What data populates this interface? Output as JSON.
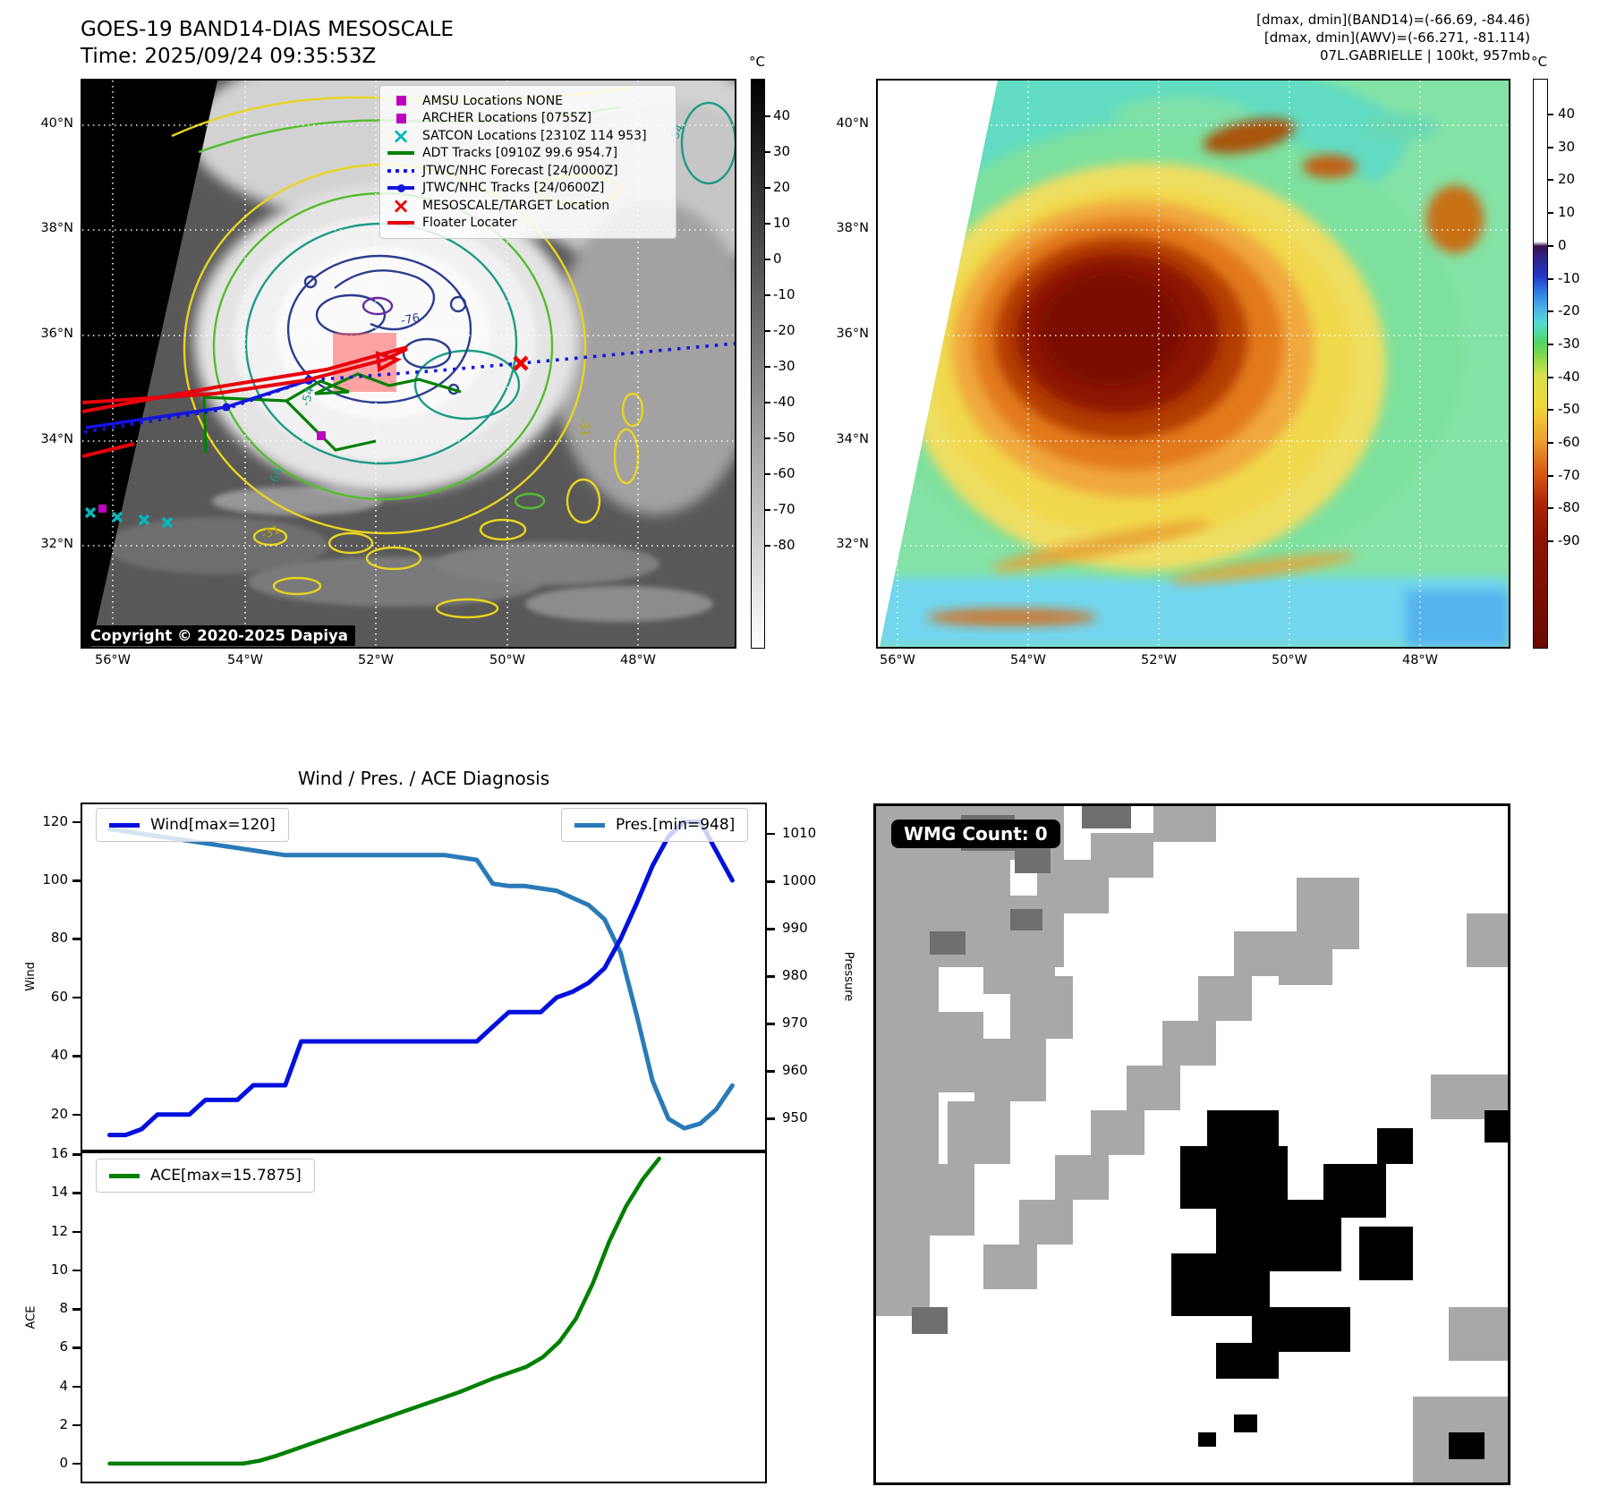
{
  "header": {
    "title": "GOES-19 BAND14-DIAS MESOSCALE",
    "time": "Time: 2025/09/24 09:35:53Z",
    "info_lines": [
      "[dmax, dmin](BAND14)=(-66.69, -84.46)",
      "[dmax, dmin](AWV)=(-66.271, -81.114)",
      "07L.GABRIELLE | 100kt, 957mb"
    ]
  },
  "ir_panel": {
    "legend_items": [
      {
        "marker": "square-magenta",
        "label": "AMSU Locations NONE"
      },
      {
        "marker": "square-magenta",
        "label": "ARCHER Locations [0755Z]"
      },
      {
        "marker": "x-cyan",
        "label": "SATCON Locations [2310Z 114 953]"
      },
      {
        "marker": "line-green",
        "label": "ADT Tracks [0910Z 99.6 954.7]"
      },
      {
        "marker": "dotted-blue",
        "label": "JTWC/NHC Forecast [24/0000Z]"
      },
      {
        "marker": "line-dot-blue",
        "label": "JTWC/NHC Tracks [24/0600Z]"
      },
      {
        "marker": "x-red",
        "label": "MESOSCALE/TARGET Location"
      },
      {
        "marker": "line-red",
        "label": "Floater Locater"
      }
    ],
    "copyright": "Copyright © 2020-2025 Dapiya",
    "lat_ticks": [
      "40°N",
      "38°N",
      "36°N",
      "34°N",
      "32°N"
    ],
    "lon_ticks": [
      "56°W",
      "54°W",
      "52°W",
      "50°W",
      "48°W"
    ],
    "contour_labels": [
      "-76",
      "-54",
      "-64",
      "-31",
      "-31",
      "-54"
    ],
    "colorbar": {
      "unit": "°C",
      "ticks": [
        40,
        30,
        20,
        10,
        0,
        -10,
        -20,
        -30,
        -40,
        -50,
        -60,
        -70,
        -80
      ]
    }
  },
  "awv_panel": {
    "lat_ticks": [
      "40°N",
      "38°N",
      "36°N",
      "34°N",
      "32°N"
    ],
    "lon_ticks": [
      "56°W",
      "54°W",
      "52°W",
      "50°W",
      "48°W"
    ],
    "colorbar": {
      "unit": "°C",
      "ticks": [
        40,
        30,
        20,
        10,
        0,
        -10,
        -20,
        -30,
        -40,
        -50,
        -60,
        -70,
        -80,
        -90
      ]
    }
  },
  "wmg_panel": {
    "label": "WMG Count: 0"
  },
  "chart_data": {
    "type": "line",
    "title": "Wind / Pres. / ACE Diagnosis",
    "x_axis": {
      "label": "",
      "note": "time steps, no tick labels shown"
    },
    "panels": [
      {
        "id": "wind_pressure",
        "series": [
          {
            "name": "Wind[max=120]",
            "color": "#0010dd",
            "axis": "left",
            "ylabel": "Wind",
            "ylim": [
              8,
              126
            ],
            "yticks": [
              20,
              40,
              60,
              80,
              100,
              120
            ],
            "values": [
              13,
              13,
              15,
              20,
              20,
              20,
              25,
              25,
              25,
              30,
              30,
              30,
              45,
              45,
              45,
              45,
              45,
              45,
              45,
              45,
              45,
              45,
              45,
              45,
              50,
              55,
              55,
              55,
              60,
              62,
              65,
              70,
              80,
              92,
              105,
              115,
              120,
              120,
              110,
              100
            ]
          },
          {
            "name": "Pres.[min=948]",
            "color": "#2a7ab8",
            "axis": "right",
            "ylabel": "Pressure",
            "ylim": [
              943.5,
              1016.2
            ],
            "yticks": [
              950,
              960,
              970,
              980,
              990,
              1000,
              1010
            ],
            "values": [
              1011,
              1010.5,
              1010,
              1009.5,
              1009,
              1008.5,
              1008,
              1007.5,
              1007,
              1006.5,
              1006,
              1005.5,
              1005.5,
              1005.5,
              1005.5,
              1005.5,
              1005.5,
              1005.5,
              1005.5,
              1005.5,
              1005.5,
              1005.5,
              1005,
              1004.5,
              999.5,
              999,
              999,
              998.5,
              998,
              996.5,
              995,
              992,
              985,
              972,
              958,
              950,
              948,
              949,
              952,
              957
            ]
          }
        ]
      },
      {
        "id": "ace",
        "series": [
          {
            "name": "ACE[max=15.7875]",
            "color": "#008000",
            "axis": "left",
            "ylabel": "ACE",
            "ylim": [
              -0.93,
              16.06
            ],
            "yticks": [
              0,
              2,
              4,
              6,
              8,
              10,
              12,
              14,
              16
            ],
            "values": [
              0,
              0,
              0,
              0,
              0,
              0,
              0,
              0,
              0,
              0.15,
              0.4,
              0.7,
              1.0,
              1.3,
              1.6,
              1.9,
              2.2,
              2.5,
              2.8,
              3.1,
              3.4,
              3.7,
              4.05,
              4.4,
              4.7,
              5.0,
              5.5,
              6.3,
              7.5,
              9.3,
              11.5,
              13.3,
              14.7,
              15.7875
            ]
          }
        ]
      }
    ]
  }
}
